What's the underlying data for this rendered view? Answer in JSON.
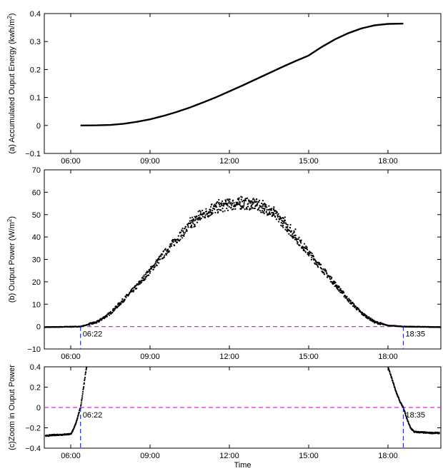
{
  "chart_data": [
    {
      "id": "a",
      "type": "line",
      "ylabel": "(a) Accumulated Ouput Energy (kwh/m²)",
      "ylabel_main": "(a) Accumulated Ouput Energy (kwh/m",
      "ylabel_sup": "2",
      "ylabel_end": ")",
      "xlabel": "",
      "xlim": [
        5.0,
        20.0
      ],
      "ylim": [
        -0.1,
        0.4
      ],
      "xticks": [
        6,
        9,
        12,
        15,
        18
      ],
      "xtick_labels": [
        "06:00",
        "09:00",
        "12:00",
        "15:00",
        "18:00"
      ],
      "yticks": [
        -0.1,
        0,
        0.1,
        0.2,
        0.3,
        0.4
      ],
      "ytick_labels": [
        "−0.1",
        "0",
        "0.1",
        "0.2",
        "0.3",
        "0.4"
      ],
      "series": [
        {
          "x": [
            6.37,
            7.0,
            7.5,
            8.0,
            8.5,
            9.0,
            9.5,
            10.0,
            10.5,
            11.0,
            11.5,
            12.0,
            12.5,
            13.0,
            13.5,
            14.0,
            14.5,
            15.0,
            15.5,
            16.0,
            16.5,
            17.0,
            17.5,
            18.0,
            18.58
          ],
          "y": [
            0.0,
            0.0005,
            0.002,
            0.006,
            0.013,
            0.022,
            0.034,
            0.048,
            0.064,
            0.082,
            0.101,
            0.122,
            0.143,
            0.165,
            0.187,
            0.209,
            0.23,
            0.25,
            0.281,
            0.308,
            0.33,
            0.347,
            0.358,
            0.363,
            0.364
          ]
        }
      ]
    },
    {
      "id": "b",
      "type": "scatter",
      "ylabel": "(b) Output Power (W/m²)",
      "ylabel_main": "(b) Output Power (W/m",
      "ylabel_sup": "2",
      "ylabel_end": ")",
      "xlabel": "",
      "xlim": [
        5.0,
        20.0
      ],
      "ylim": [
        -10,
        70
      ],
      "xticks": [
        6,
        9,
        12,
        15,
        18
      ],
      "xtick_labels": [
        "06:00",
        "09:00",
        "12:00",
        "15:00",
        "18:00"
      ],
      "yticks": [
        -10,
        0,
        10,
        20,
        30,
        40,
        50,
        60,
        70
      ],
      "ytick_labels": [
        "−10",
        "0",
        "10",
        "20",
        "30",
        "40",
        "50",
        "60",
        "70"
      ],
      "profile": {
        "x": [
          5.0,
          6.37,
          7.0,
          7.5,
          8.0,
          8.5,
          9.0,
          9.5,
          10.0,
          10.5,
          11.0,
          11.5,
          12.0,
          12.5,
          13.0,
          13.5,
          14.0,
          14.5,
          15.0,
          15.5,
          16.0,
          16.5,
          17.0,
          17.5,
          18.0,
          18.58,
          20.0
        ],
        "y": [
          -0.27,
          0.0,
          2.0,
          6.0,
          12.0,
          18.0,
          25.0,
          32.0,
          39.0,
          45.0,
          50.0,
          53.0,
          54.5,
          55.0,
          54.5,
          52.0,
          47.0,
          40.0,
          33.0,
          26.0,
          19.0,
          12.0,
          6.0,
          2.0,
          0.5,
          0.0,
          -0.25
        ]
      },
      "reference_line_y": 0,
      "markers": [
        {
          "x": 6.37,
          "label": "06:22"
        },
        {
          "x": 18.58,
          "label": "18:35"
        }
      ]
    },
    {
      "id": "c",
      "type": "scatter",
      "ylabel": "(c)Zoom in Ouput Power",
      "ylabel_main": "(c)Zoom in Ouput Power",
      "ylabel_sup": "",
      "ylabel_end": "",
      "xlabel": "Time",
      "xlim": [
        5.0,
        20.0
      ],
      "ylim": [
        -0.4,
        0.4
      ],
      "xticks": [
        6,
        9,
        12,
        15,
        18
      ],
      "xtick_labels": [
        "06:00",
        "09:00",
        "12:00",
        "15:00",
        "18:00"
      ],
      "yticks": [
        -0.4,
        -0.2,
        0,
        0.2,
        0.4
      ],
      "ytick_labels": [
        "−0.4",
        "−0.2",
        "0",
        "0.2",
        "0.4"
      ],
      "reference_line_y": 0,
      "markers": [
        {
          "x": 6.37,
          "label": "06:22"
        },
        {
          "x": 18.58,
          "label": "18:35"
        }
      ],
      "morning_points": {
        "x": [
          5.05,
          5.2,
          5.4,
          5.6,
          5.8,
          6.0,
          6.1,
          6.2,
          6.3,
          6.37,
          6.42,
          6.48,
          6.55,
          6.6
        ],
        "y": [
          -0.28,
          -0.275,
          -0.27,
          -0.268,
          -0.265,
          -0.26,
          -0.22,
          -0.15,
          -0.06,
          0.0,
          0.08,
          0.19,
          0.32,
          0.4
        ]
      },
      "evening_points": {
        "x": [
          18.0,
          18.15,
          18.3,
          18.45,
          18.58,
          18.7,
          18.85,
          19.0,
          19.3,
          19.6,
          19.95
        ],
        "y": [
          0.4,
          0.28,
          0.16,
          0.06,
          0.0,
          -0.1,
          -0.2,
          -0.24,
          -0.245,
          -0.25,
          -0.25
        ]
      }
    }
  ]
}
